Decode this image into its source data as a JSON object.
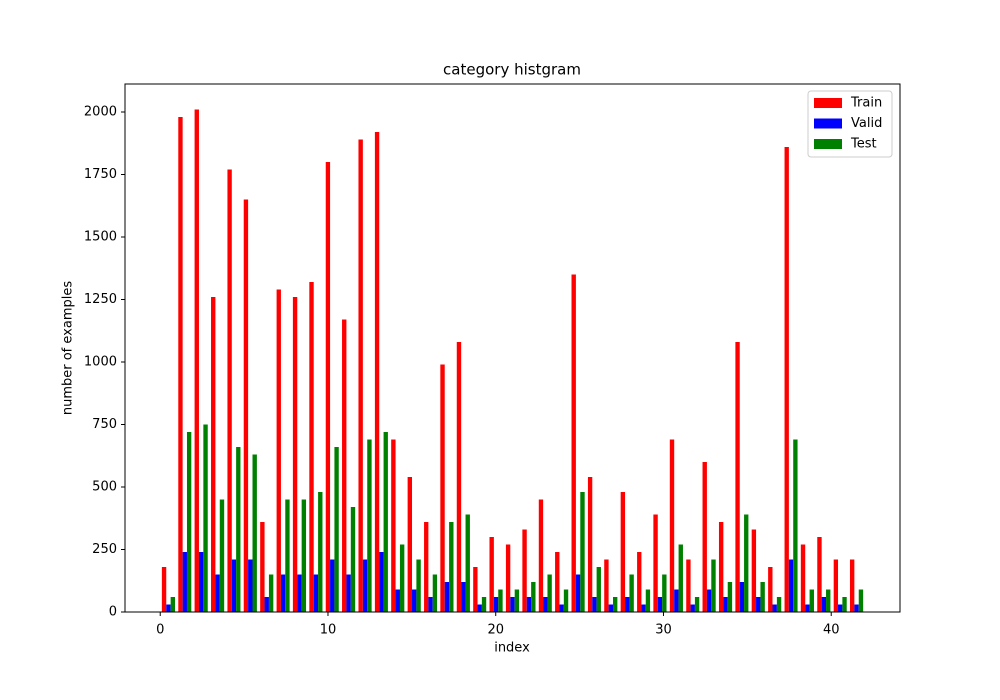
{
  "chart_data": {
    "type": "histogram",
    "title": "category histgram",
    "xlabel": "index",
    "ylabel": "number of examples",
    "bins": [
      0,
      0.98,
      1.95,
      2.93,
      3.91,
      4.88,
      5.86,
      6.84,
      7.81,
      8.79,
      9.77,
      10.74,
      11.72,
      12.7,
      13.67,
      14.65,
      15.63,
      16.6,
      17.58,
      18.56,
      19.53,
      20.51,
      21.49,
      22.47,
      23.44,
      24.42,
      25.4,
      26.37,
      27.35,
      28.33,
      29.3,
      30.28,
      31.26,
      32.23,
      33.21,
      34.19,
      35.16,
      36.14,
      37.12,
      38.09,
      39.07,
      40.05,
      41.02,
      42
    ],
    "series": [
      {
        "name": "Train",
        "color": "#ff0000",
        "values": [
          180,
          1980,
          2010,
          1260,
          1770,
          1650,
          360,
          1290,
          1260,
          1320,
          1800,
          1170,
          1890,
          1920,
          690,
          540,
          360,
          990,
          1080,
          180,
          300,
          270,
          330,
          450,
          240,
          1350,
          540,
          210,
          480,
          240,
          390,
          690,
          210,
          600,
          360,
          1080,
          330,
          180,
          1860,
          270,
          300,
          210,
          210
        ]
      },
      {
        "name": "Valid",
        "color": "#0000ff",
        "values": [
          30,
          240,
          240,
          150,
          210,
          210,
          60,
          150,
          150,
          150,
          210,
          150,
          210,
          240,
          90,
          90,
          60,
          120,
          120,
          30,
          60,
          60,
          60,
          60,
          30,
          150,
          60,
          30,
          60,
          30,
          60,
          90,
          30,
          90,
          60,
          120,
          60,
          30,
          210,
          30,
          60,
          30,
          30
        ]
      },
      {
        "name": "Test",
        "color": "#008000",
        "values": [
          60,
          720,
          750,
          450,
          660,
          630,
          150,
          450,
          450,
          480,
          660,
          420,
          690,
          720,
          270,
          210,
          150,
          360,
          390,
          60,
          90,
          90,
          120,
          150,
          90,
          480,
          180,
          60,
          150,
          90,
          150,
          270,
          60,
          210,
          120,
          390,
          120,
          60,
          690,
          90,
          90,
          60,
          90
        ]
      }
    ],
    "xlim": [
      -2.1,
      44.1
    ],
    "xticks": [
      0,
      10,
      20,
      30,
      40
    ],
    "ylim": [
      0,
      2112
    ],
    "yticks": [
      0,
      250,
      500,
      750,
      1000,
      1250,
      1500,
      1750,
      2000
    ],
    "legend": "upper right"
  }
}
